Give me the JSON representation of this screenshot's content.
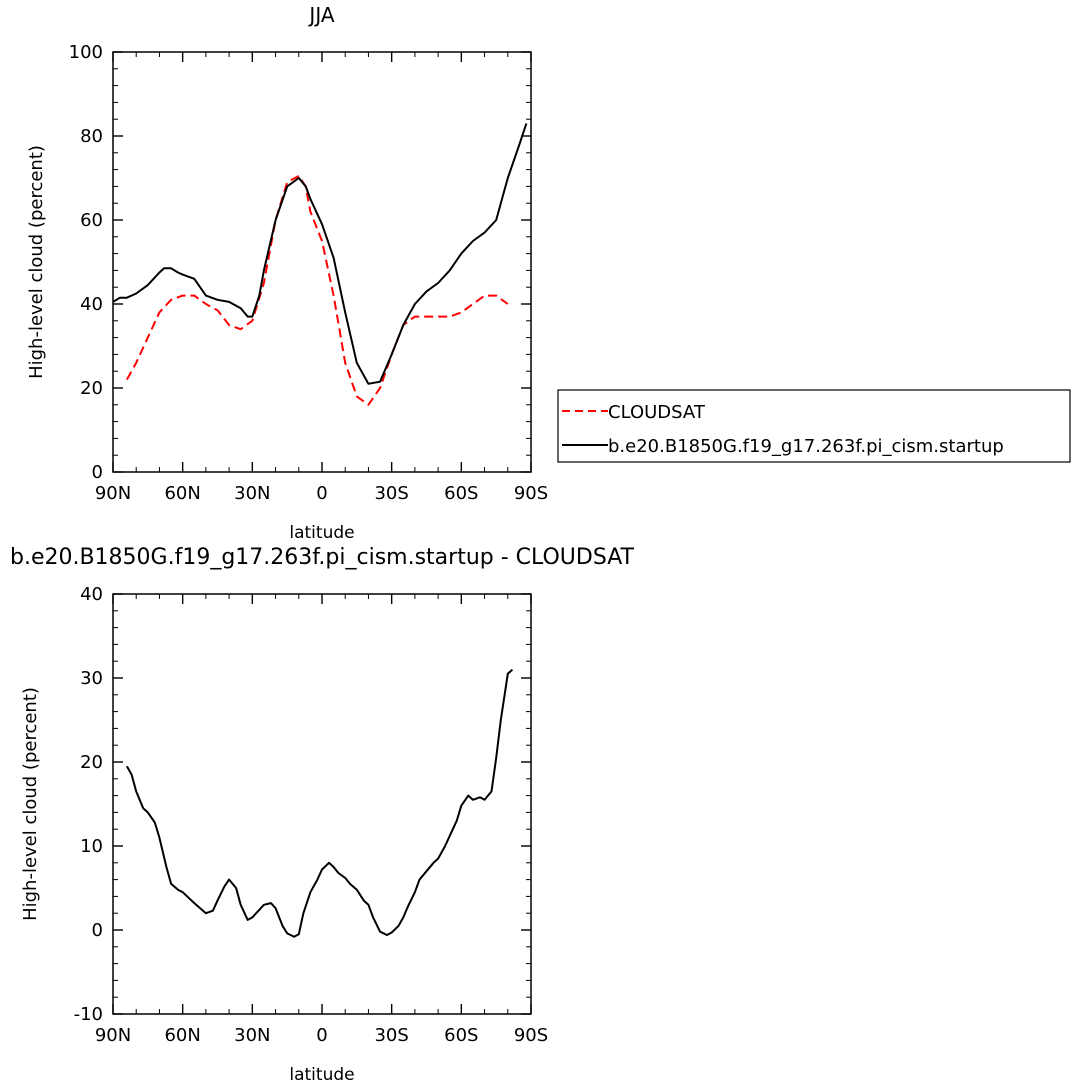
{
  "chart_data": [
    {
      "type": "line",
      "title": "JJA",
      "xlabel": "latitude",
      "ylabel": "High-level cloud (percent)",
      "xlim": [
        90,
        -90
      ],
      "ylim": [
        0,
        100
      ],
      "xticks": [
        90,
        60,
        30,
        0,
        -30,
        -60,
        -90
      ],
      "xtick_labels": [
        "90N",
        "60N",
        "30N",
        "0",
        "30S",
        "60S",
        "90S"
      ],
      "yticks": [
        0,
        20,
        40,
        60,
        80,
        100
      ],
      "ytick_labels": [
        "0",
        "20",
        "40",
        "60",
        "80",
        "100"
      ],
      "legend_position": "right",
      "series": [
        {
          "name": "CLOUDSAT",
          "color": "#ff0000",
          "dash": "dashed",
          "x": [
            84,
            80,
            75,
            70,
            65,
            60,
            55,
            50,
            45,
            40,
            35,
            30,
            25,
            20,
            15,
            10,
            7,
            5,
            0,
            -5,
            -10,
            -15,
            -20,
            -25,
            -30,
            -35,
            -40,
            -45,
            -50,
            -55,
            -60,
            -65,
            -70,
            -75,
            -80
          ],
          "y": [
            22,
            26,
            32,
            38,
            41,
            42,
            42,
            40,
            38.5,
            35,
            34,
            36,
            45,
            60,
            69,
            70.5,
            68,
            62,
            55,
            42,
            26,
            18,
            16,
            20,
            28,
            35,
            37,
            37,
            37,
            37,
            38,
            40,
            42,
            42,
            40
          ]
        },
        {
          "name": "b.e20.B1850G.f19_g17.263f.pi_cism.startup",
          "color": "#000000",
          "dash": "solid",
          "x": [
            90,
            87,
            84,
            80,
            75,
            70,
            68,
            65,
            62,
            60,
            55,
            50,
            45,
            40,
            35,
            32,
            30,
            27,
            25,
            20,
            15,
            10,
            7,
            5,
            0,
            -5,
            -10,
            -15,
            -20,
            -25,
            -30,
            -35,
            -40,
            -45,
            -50,
            -55,
            -60,
            -65,
            -70,
            -75,
            -80,
            -85,
            -88
          ],
          "y": [
            40.5,
            41.5,
            41.5,
            42.5,
            44.5,
            47.5,
            48.5,
            48.5,
            47.5,
            47,
            46,
            42,
            41,
            40.5,
            39,
            37,
            37,
            42,
            48,
            60,
            68,
            70,
            68,
            65,
            59,
            51,
            38,
            26,
            21,
            21.5,
            28,
            35,
            40,
            43,
            45,
            48,
            52,
            55,
            57,
            60,
            70,
            78,
            83
          ]
        }
      ]
    },
    {
      "type": "line",
      "title": "b.e20.B1850G.f19_g17.263f.pi_cism.startup - CLOUDSAT",
      "xlabel": "latitude",
      "ylabel": "High-level cloud (percent)",
      "xlim": [
        90,
        -90
      ],
      "ylim": [
        -10,
        40
      ],
      "xticks": [
        90,
        60,
        30,
        0,
        -30,
        -60,
        -90
      ],
      "xtick_labels": [
        "90N",
        "60N",
        "30N",
        "0",
        "30S",
        "60S",
        "90S"
      ],
      "yticks": [
        -10,
        0,
        10,
        20,
        30,
        40
      ],
      "ytick_labels": [
        "-10",
        "0",
        "10",
        "20",
        "30",
        "40"
      ],
      "series": [
        {
          "name": "",
          "color": "#000000",
          "dash": "solid",
          "x": [
            84,
            82,
            80,
            77,
            75,
            72,
            70,
            67,
            65,
            62,
            60,
            55,
            50,
            47,
            45,
            42,
            40,
            37,
            35,
            32,
            30,
            27,
            25,
            22,
            20,
            17,
            15,
            12,
            10,
            8,
            5,
            2,
            0,
            -3,
            -5,
            -7,
            -10,
            -12,
            -15,
            -18,
            -20,
            -22,
            -25,
            -28,
            -30,
            -33,
            -35,
            -37,
            -40,
            -42,
            -45,
            -48,
            -50,
            -53,
            -55,
            -58,
            -60,
            -63,
            -65,
            -68,
            -70,
            -73,
            -75,
            -77,
            -80,
            -82
          ],
          "y": [
            19.5,
            18.5,
            16.5,
            14.5,
            14,
            12.8,
            11,
            7.5,
            5.5,
            4.8,
            4.5,
            3.2,
            2,
            2.3,
            3.5,
            5.2,
            6,
            5,
            3,
            1.2,
            1.5,
            2.4,
            3,
            3.2,
            2.6,
            0.5,
            -0.4,
            -0.8,
            -0.5,
            2,
            4.5,
            6,
            7.2,
            8,
            7.5,
            6.8,
            6.2,
            5.5,
            4.8,
            3.5,
            3,
            1.5,
            -0.2,
            -0.6,
            -0.3,
            0.5,
            1.5,
            2.8,
            4.5,
            6,
            7,
            8,
            8.5,
            10,
            11.2,
            13,
            14.8,
            16,
            15.5,
            15.8,
            15.5,
            16.5,
            20.5,
            25,
            30.5,
            31
          ]
        }
      ]
    }
  ]
}
